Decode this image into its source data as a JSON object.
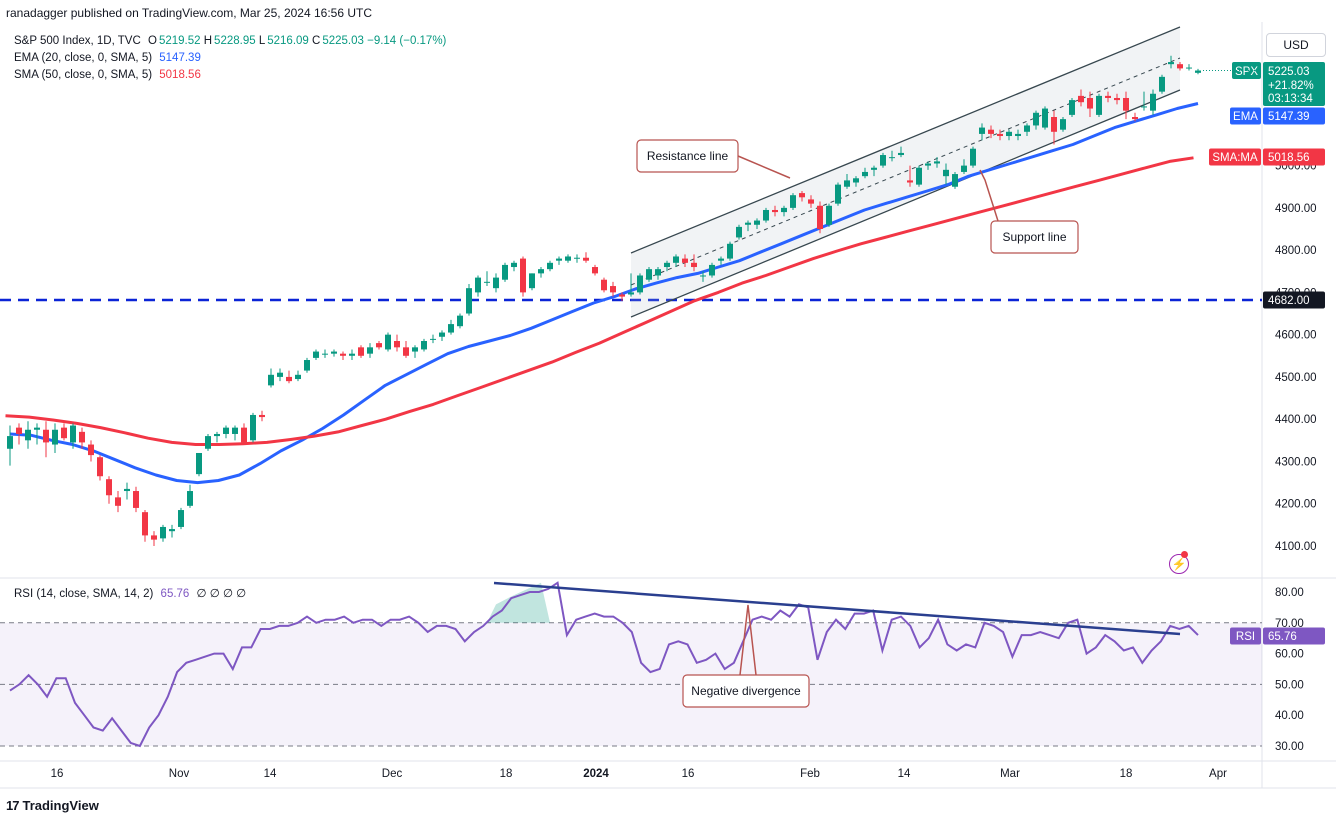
{
  "header": {
    "text": "ranadagger published on TradingView.com, Mar 25, 2024 16:56 UTC"
  },
  "legend": {
    "line1_title": "S&P 500 Index, 1D, TVC",
    "o_label": "O",
    "o_value": "5219.52",
    "h_label": "H",
    "h_value": "5228.95",
    "l_label": "L",
    "l_value": "5216.09",
    "c_label": "C",
    "c_value": "5225.03",
    "change": "−9.14 (−0.17%)",
    "ema_label": "EMA (20, close, 0, SMA, 5)",
    "ema_value": "5147.39",
    "sma_label": "SMA (50, close, 0, SMA, 5)",
    "sma_value": "5018.56",
    "rsi_label": "RSI (14, close, SMA, 14, 2)",
    "rsi_value": "65.76",
    "rsi_tail": "∅ ∅ ∅ ∅"
  },
  "currency": "USD",
  "footer": {
    "brand": "TradingView",
    "logo_icon": "tradingview-logo-icon"
  },
  "colors": {
    "up": "#089981",
    "down": "#f23645",
    "ema": "#2962ff",
    "sma": "#f23645",
    "rsi": "#7e57c2",
    "trend": "#2a3f8f",
    "hline": "#0b24d6"
  },
  "tags": {
    "spx_label": "SPX",
    "spx_value": "5225.03",
    "spx_change": "+21.82%",
    "spx_time": "03:13:34",
    "ema_label": "EMA",
    "ema_value": "5147.39",
    "sma_label": "SMA:MA",
    "sma_value": "5018.56",
    "hline_value": "4682.00",
    "rsi_label": "RSI",
    "rsi_value": "65.76"
  },
  "annotations": {
    "resistance": "Resistance line",
    "support": "Support line",
    "divergence": "Negative divergence"
  },
  "chart_data": [
    {
      "type": "candlestick",
      "title": "S&P 500 Index, 1D, TVC",
      "ylim": [
        4060,
        5260
      ],
      "y_ticks": [
        "4100.00",
        "4200.00",
        "4300.00",
        "4400.00",
        "4500.00",
        "4600.00",
        "4700.00",
        "4800.00",
        "4900.00",
        "5000.00"
      ],
      "x_ticks": [
        "16",
        "Nov",
        "14",
        "Dec",
        "18",
        "2024",
        "16",
        "Feb",
        "14",
        "Mar",
        "18",
        "Apr"
      ],
      "horizontal_line": 4682,
      "candles": [
        {
          "o": 4330,
          "h": 4385,
          "l": 4290,
          "c": 4360
        },
        {
          "o": 4380,
          "h": 4390,
          "l": 4340,
          "c": 4365
        },
        {
          "o": 4350,
          "h": 4395,
          "l": 4330,
          "c": 4375
        },
        {
          "o": 4375,
          "h": 4390,
          "l": 4340,
          "c": 4380
        },
        {
          "o": 4375,
          "h": 4395,
          "l": 4310,
          "c": 4345
        },
        {
          "o": 4340,
          "h": 4390,
          "l": 4320,
          "c": 4375
        },
        {
          "o": 4380,
          "h": 4390,
          "l": 4350,
          "c": 4355
        },
        {
          "o": 4345,
          "h": 4390,
          "l": 4330,
          "c": 4385
        },
        {
          "o": 4370,
          "h": 4380,
          "l": 4330,
          "c": 4345
        },
        {
          "o": 4340,
          "h": 4350,
          "l": 4300,
          "c": 4315
        },
        {
          "o": 4310,
          "h": 4315,
          "l": 4255,
          "c": 4265
        },
        {
          "o": 4258,
          "h": 4265,
          "l": 4200,
          "c": 4220
        },
        {
          "o": 4215,
          "h": 4230,
          "l": 4180,
          "c": 4195
        },
        {
          "o": 4230,
          "h": 4250,
          "l": 4210,
          "c": 4235
        },
        {
          "o": 4230,
          "h": 4240,
          "l": 4180,
          "c": 4190
        },
        {
          "o": 4180,
          "h": 4185,
          "l": 4110,
          "c": 4125
        },
        {
          "o": 4125,
          "h": 4135,
          "l": 4100,
          "c": 4115
        },
        {
          "o": 4118,
          "h": 4150,
          "l": 4110,
          "c": 4145
        },
        {
          "o": 4135,
          "h": 4150,
          "l": 4120,
          "c": 4140
        },
        {
          "o": 4145,
          "h": 4190,
          "l": 4140,
          "c": 4185
        },
        {
          "o": 4195,
          "h": 4245,
          "l": 4190,
          "c": 4230
        },
        {
          "o": 4270,
          "h": 4320,
          "l": 4265,
          "c": 4320
        },
        {
          "o": 4330,
          "h": 4365,
          "l": 4325,
          "c": 4360
        },
        {
          "o": 4360,
          "h": 4370,
          "l": 4345,
          "c": 4365
        },
        {
          "o": 4365,
          "h": 4385,
          "l": 4355,
          "c": 4380
        },
        {
          "o": 4365,
          "h": 4385,
          "l": 4350,
          "c": 4380
        },
        {
          "o": 4380,
          "h": 4390,
          "l": 4340,
          "c": 4345
        },
        {
          "o": 4350,
          "h": 4415,
          "l": 4345,
          "c": 4410
        },
        {
          "o": 4410,
          "h": 4420,
          "l": 4395,
          "c": 4405
        },
        {
          "o": 4480,
          "h": 4520,
          "l": 4475,
          "c": 4505
        },
        {
          "o": 4500,
          "h": 4520,
          "l": 4490,
          "c": 4510
        },
        {
          "o": 4500,
          "h": 4515,
          "l": 4485,
          "c": 4490
        },
        {
          "o": 4495,
          "h": 4515,
          "l": 4490,
          "c": 4505
        },
        {
          "o": 4515,
          "h": 4545,
          "l": 4510,
          "c": 4540
        },
        {
          "o": 4545,
          "h": 4565,
          "l": 4540,
          "c": 4560
        },
        {
          "o": 4555,
          "h": 4565,
          "l": 4545,
          "c": 4555
        },
        {
          "o": 4555,
          "h": 4565,
          "l": 4548,
          "c": 4560
        },
        {
          "o": 4555,
          "h": 4560,
          "l": 4540,
          "c": 4550
        },
        {
          "o": 4550,
          "h": 4565,
          "l": 4540,
          "c": 4555
        },
        {
          "o": 4570,
          "h": 4575,
          "l": 4545,
          "c": 4550
        },
        {
          "o": 4555,
          "h": 4580,
          "l": 4545,
          "c": 4570
        },
        {
          "o": 4580,
          "h": 4585,
          "l": 4565,
          "c": 4570
        },
        {
          "o": 4565,
          "h": 4605,
          "l": 4560,
          "c": 4600
        },
        {
          "o": 4585,
          "h": 4600,
          "l": 4560,
          "c": 4570
        },
        {
          "o": 4570,
          "h": 4585,
          "l": 4545,
          "c": 4550
        },
        {
          "o": 4560,
          "h": 4575,
          "l": 4545,
          "c": 4570
        },
        {
          "o": 4565,
          "h": 4590,
          "l": 4560,
          "c": 4585
        },
        {
          "o": 4590,
          "h": 4600,
          "l": 4580,
          "c": 4590
        },
        {
          "o": 4595,
          "h": 4610,
          "l": 4585,
          "c": 4605
        },
        {
          "o": 4605,
          "h": 4635,
          "l": 4600,
          "c": 4625
        },
        {
          "o": 4620,
          "h": 4650,
          "l": 4615,
          "c": 4645
        },
        {
          "o": 4650,
          "h": 4720,
          "l": 4645,
          "c": 4710
        },
        {
          "o": 4700,
          "h": 4740,
          "l": 4690,
          "c": 4735
        },
        {
          "o": 4725,
          "h": 4750,
          "l": 4715,
          "c": 4725
        },
        {
          "o": 4710,
          "h": 4745,
          "l": 4700,
          "c": 4735
        },
        {
          "o": 4730,
          "h": 4770,
          "l": 4725,
          "c": 4765
        },
        {
          "o": 4760,
          "h": 4775,
          "l": 4750,
          "c": 4770
        },
        {
          "o": 4780,
          "h": 4785,
          "l": 4690,
          "c": 4700
        },
        {
          "o": 4710,
          "h": 4745,
          "l": 4705,
          "c": 4745
        },
        {
          "o": 4745,
          "h": 4760,
          "l": 4735,
          "c": 4755
        },
        {
          "o": 4755,
          "h": 4775,
          "l": 4750,
          "c": 4770
        },
        {
          "o": 4775,
          "h": 4785,
          "l": 4765,
          "c": 4780
        },
        {
          "o": 4775,
          "h": 4790,
          "l": 4770,
          "c": 4785
        },
        {
          "o": 4780,
          "h": 4790,
          "l": 4770,
          "c": 4782
        },
        {
          "o": 4782,
          "h": 4795,
          "l": 4770,
          "c": 4775
        },
        {
          "o": 4760,
          "h": 4765,
          "l": 4740,
          "c": 4745
        },
        {
          "o": 4730,
          "h": 4735,
          "l": 4700,
          "c": 4705
        },
        {
          "o": 4715,
          "h": 4725,
          "l": 4690,
          "c": 4700
        },
        {
          "o": 4695,
          "h": 4700,
          "l": 4680,
          "c": 4690
        },
        {
          "o": 4695,
          "h": 4745,
          "l": 4690,
          "c": 4700
        },
        {
          "o": 4700,
          "h": 4745,
          "l": 4695,
          "c": 4740
        },
        {
          "o": 4730,
          "h": 4760,
          "l": 4725,
          "c": 4755
        },
        {
          "o": 4740,
          "h": 4760,
          "l": 4730,
          "c": 4755
        },
        {
          "o": 4760,
          "h": 4775,
          "l": 4750,
          "c": 4770
        },
        {
          "o": 4770,
          "h": 4790,
          "l": 4760,
          "c": 4785
        },
        {
          "o": 4780,
          "h": 4790,
          "l": 4760,
          "c": 4770
        },
        {
          "o": 4770,
          "h": 4790,
          "l": 4750,
          "c": 4760
        },
        {
          "o": 4740,
          "h": 4750,
          "l": 4725,
          "c": 4740
        },
        {
          "o": 4740,
          "h": 4770,
          "l": 4735,
          "c": 4765
        },
        {
          "o": 4775,
          "h": 4785,
          "l": 4765,
          "c": 4780
        },
        {
          "o": 4780,
          "h": 4820,
          "l": 4775,
          "c": 4815
        },
        {
          "o": 4830,
          "h": 4860,
          "l": 4825,
          "c": 4855
        },
        {
          "o": 4860,
          "h": 4870,
          "l": 4845,
          "c": 4865
        },
        {
          "o": 4860,
          "h": 4875,
          "l": 4850,
          "c": 4870
        },
        {
          "o": 4870,
          "h": 4900,
          "l": 4865,
          "c": 4895
        },
        {
          "o": 4895,
          "h": 4905,
          "l": 4880,
          "c": 4890
        },
        {
          "o": 4890,
          "h": 4905,
          "l": 4880,
          "c": 4900
        },
        {
          "o": 4900,
          "h": 4935,
          "l": 4895,
          "c": 4930
        },
        {
          "o": 4935,
          "h": 4940,
          "l": 4915,
          "c": 4925
        },
        {
          "o": 4920,
          "h": 4930,
          "l": 4900,
          "c": 4910
        },
        {
          "o": 4905,
          "h": 4915,
          "l": 4840,
          "c": 4850
        },
        {
          "o": 4860,
          "h": 4910,
          "l": 4855,
          "c": 4905
        },
        {
          "o": 4910,
          "h": 4960,
          "l": 4905,
          "c": 4955
        },
        {
          "o": 4950,
          "h": 4980,
          "l": 4945,
          "c": 4965
        },
        {
          "o": 4960,
          "h": 4975,
          "l": 4950,
          "c": 4970
        },
        {
          "o": 4975,
          "h": 4995,
          "l": 4970,
          "c": 4985
        },
        {
          "o": 4990,
          "h": 5000,
          "l": 4975,
          "c": 4995
        },
        {
          "o": 5000,
          "h": 5030,
          "l": 4995,
          "c": 5025
        },
        {
          "o": 5020,
          "h": 5035,
          "l": 5010,
          "c": 5020
        },
        {
          "o": 5025,
          "h": 5045,
          "l": 5020,
          "c": 5030
        },
        {
          "o": 4965,
          "h": 5000,
          "l": 4950,
          "c": 4960
        },
        {
          "o": 4955,
          "h": 5000,
          "l": 4950,
          "c": 4995
        },
        {
          "o": 5000,
          "h": 5010,
          "l": 4990,
          "c": 5005
        },
        {
          "o": 5005,
          "h": 5020,
          "l": 4995,
          "c": 5010
        },
        {
          "o": 4975,
          "h": 5005,
          "l": 4955,
          "c": 4990
        },
        {
          "o": 4950,
          "h": 4985,
          "l": 4945,
          "c": 4980
        },
        {
          "o": 4985,
          "h": 5015,
          "l": 4980,
          "c": 5000
        },
        {
          "o": 5000,
          "h": 5045,
          "l": 4995,
          "c": 5040
        },
        {
          "o": 5075,
          "h": 5100,
          "l": 5060,
          "c": 5090
        },
        {
          "o": 5085,
          "h": 5095,
          "l": 5065,
          "c": 5075
        },
        {
          "o": 5075,
          "h": 5085,
          "l": 5060,
          "c": 5070
        },
        {
          "o": 5070,
          "h": 5085,
          "l": 5060,
          "c": 5080
        },
        {
          "o": 5070,
          "h": 5085,
          "l": 5060,
          "c": 5075
        },
        {
          "o": 5080,
          "h": 5100,
          "l": 5070,
          "c": 5095
        },
        {
          "o": 5095,
          "h": 5130,
          "l": 5085,
          "c": 5125
        },
        {
          "o": 5090,
          "h": 5140,
          "l": 5085,
          "c": 5135
        },
        {
          "o": 5115,
          "h": 5130,
          "l": 5050,
          "c": 5080
        },
        {
          "o": 5085,
          "h": 5115,
          "l": 5080,
          "c": 5110
        },
        {
          "o": 5120,
          "h": 5160,
          "l": 5115,
          "c": 5155
        },
        {
          "o": 5165,
          "h": 5180,
          "l": 5140,
          "c": 5150
        },
        {
          "o": 5160,
          "h": 5175,
          "l": 5115,
          "c": 5135
        },
        {
          "o": 5120,
          "h": 5170,
          "l": 5115,
          "c": 5165
        },
        {
          "o": 5165,
          "h": 5175,
          "l": 5150,
          "c": 5160
        },
        {
          "o": 5160,
          "h": 5170,
          "l": 5145,
          "c": 5155
        },
        {
          "o": 5160,
          "h": 5175,
          "l": 5110,
          "c": 5130
        },
        {
          "o": 5115,
          "h": 5125,
          "l": 5105,
          "c": 5110
        },
        {
          "o": 5140,
          "h": 5175,
          "l": 5130,
          "c": 5140
        },
        {
          "o": 5130,
          "h": 5180,
          "l": 5120,
          "c": 5170
        },
        {
          "o": 5175,
          "h": 5215,
          "l": 5170,
          "c": 5210
        },
        {
          "o": 5240,
          "h": 5260,
          "l": 5230,
          "c": 5245
        },
        {
          "o": 5240,
          "h": 5245,
          "l": 5225,
          "c": 5230
        },
        {
          "o": 5230,
          "h": 5240,
          "l": 5225,
          "c": 5232
        },
        {
          "o": 5219.52,
          "h": 5228.95,
          "l": 5216.09,
          "c": 5225.03
        }
      ],
      "ema20": [
        4365,
        4362,
        4350,
        4340,
        4325,
        4305,
        4285,
        4268,
        4255,
        4250,
        4255,
        4268,
        4295,
        4325,
        4350,
        4378,
        4410,
        4445,
        4480,
        4505,
        4530,
        4555,
        4572,
        4585,
        4598,
        4615,
        4635,
        4655,
        4675,
        4690,
        4708,
        4722,
        4735,
        4745,
        4760,
        4775,
        4795,
        4815,
        4835,
        4855,
        4875,
        4895,
        4910,
        4925,
        4940,
        4955,
        4975,
        4990,
        5005,
        5020,
        5035,
        5050,
        5070,
        5090,
        5105,
        5120,
        5135,
        5147
      ],
      "sma50": [
        4408,
        4405,
        4398,
        4390,
        4380,
        4368,
        4355,
        4345,
        4340,
        4340,
        4342,
        4345,
        4352,
        4360,
        4370,
        4385,
        4400,
        4418,
        4435,
        4455,
        4475,
        4495,
        4515,
        4535,
        4558,
        4580,
        4605,
        4630,
        4655,
        4680,
        4700,
        4722,
        4740,
        4760,
        4780,
        4798,
        4815,
        4830,
        4845,
        4860,
        4875,
        4890,
        4905,
        4920,
        4935,
        4950,
        4965,
        4980,
        4995,
        5010,
        5018.56
      ],
      "channel": {
        "resistance": [
          [
            4795,
            5170
          ],
          [
            5205,
            5570
          ]
        ],
        "support": [
          [
            4655,
            5030
          ],
          [
            5075,
            5445
          ]
        ],
        "mid": [
          [
            4725,
            5100
          ],
          [
            5140,
            5505
          ]
        ]
      }
    },
    {
      "type": "line",
      "title": "RSI (14, close, SMA, 14, 2)",
      "ylim": [
        27,
        84
      ],
      "y_ticks": [
        "30.00",
        "40.00",
        "50.00",
        "60.00",
        "70.00",
        "80.00"
      ],
      "bands": [
        30,
        50,
        70
      ],
      "values": [
        48,
        50,
        53,
        50,
        46,
        52,
        52,
        44,
        40,
        36,
        35,
        39,
        35,
        31,
        30,
        36,
        40,
        46,
        54,
        57,
        58,
        59,
        60,
        60,
        55,
        62,
        62,
        68,
        68,
        69,
        69,
        70,
        72,
        70,
        71,
        71,
        72,
        70,
        71,
        71,
        69,
        71,
        71,
        72,
        70,
        67,
        69,
        69,
        68,
        64,
        67,
        69,
        72,
        74,
        78,
        79,
        80,
        80,
        81,
        83,
        66,
        71,
        72,
        73,
        72,
        72,
        70,
        67,
        57,
        54,
        55,
        63,
        64,
        63,
        57,
        58,
        60,
        55,
        57,
        64,
        71,
        72,
        71,
        74,
        72,
        76,
        75,
        58,
        67,
        71,
        68,
        73,
        73,
        74,
        61,
        71,
        72,
        69,
        62,
        65,
        71,
        63,
        61,
        63,
        62,
        70,
        69,
        67,
        59,
        66,
        66,
        67,
        66,
        65,
        70,
        71,
        60,
        62,
        66,
        64,
        61,
        62,
        57,
        61,
        64,
        69,
        68,
        69,
        66
      ]
    }
  ]
}
